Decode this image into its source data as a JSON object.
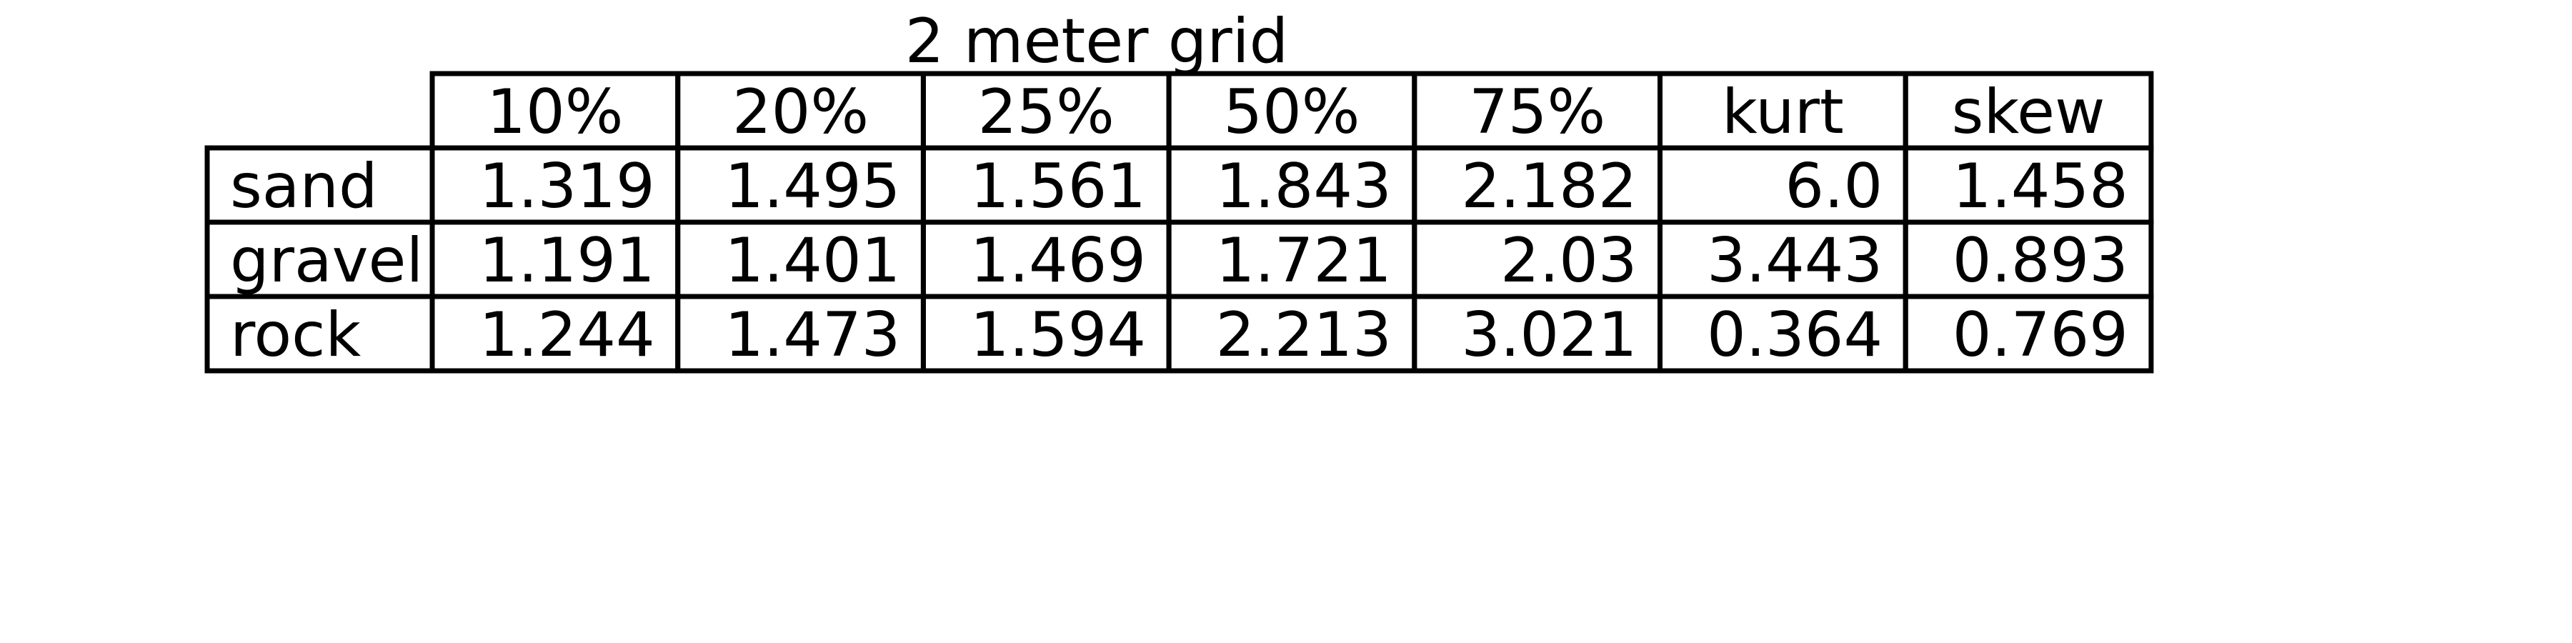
{
  "chart_data": {
    "type": "table",
    "title": "2 meter grid",
    "columns": [
      "10%",
      "20%",
      "25%",
      "50%",
      "75%",
      "kurt",
      "skew"
    ],
    "rows": [
      {
        "label": "sand",
        "values": [
          "1.319",
          "1.495",
          "1.561",
          "1.843",
          "2.182",
          "6.0",
          "1.458"
        ]
      },
      {
        "label": "gravel",
        "values": [
          "1.191",
          "1.401",
          "1.469",
          "1.721",
          "2.03",
          "3.443",
          "0.893"
        ]
      },
      {
        "label": "rock",
        "values": [
          "1.244",
          "1.473",
          "1.594",
          "2.213",
          "3.021",
          "0.364",
          "0.769"
        ]
      }
    ]
  },
  "colors": {
    "border": "#000000",
    "text": "#000000",
    "background": "#ffffff"
  }
}
